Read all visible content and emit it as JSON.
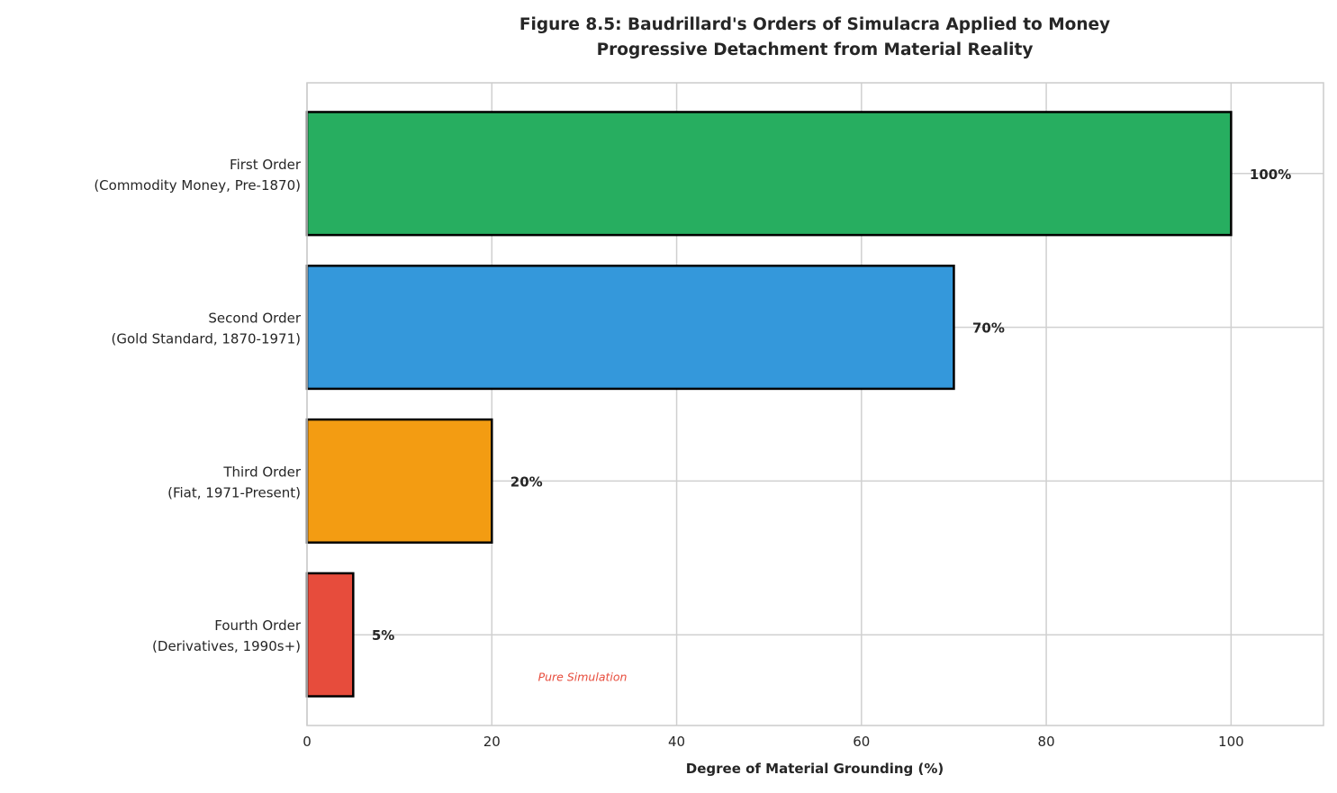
{
  "chart_data": {
    "type": "bar",
    "orientation": "horizontal",
    "title": "Figure 8.5: Baudrillard's Orders of Simulacra Applied to Money",
    "subtitle": "Progressive Detachment from Material Reality",
    "xlabel": "Degree of Material Grounding (%)",
    "ylabel": "",
    "xlim": [
      0,
      110
    ],
    "xticks": [
      0,
      20,
      40,
      60,
      80,
      100
    ],
    "grid": true,
    "categories": [
      [
        "First Order",
        "(Commodity Money, Pre-1870)"
      ],
      [
        "Second Order",
        "(Gold Standard, 1870-1971)"
      ],
      [
        "Third Order",
        "(Fiat, 1971-Present)"
      ],
      [
        "Fourth Order",
        "(Derivatives, 1990s+)"
      ]
    ],
    "values": [
      100,
      70,
      20,
      5
    ],
    "value_labels": [
      "100%",
      "70%",
      "20%",
      "5%"
    ],
    "colors": [
      "#27ae60",
      "#3498db",
      "#f39c12",
      "#e74c3c"
    ],
    "annotations": [
      {
        "text": "Pure Simulation",
        "x": 25,
        "y": 3.27,
        "color": "#e74c3c"
      }
    ]
  }
}
